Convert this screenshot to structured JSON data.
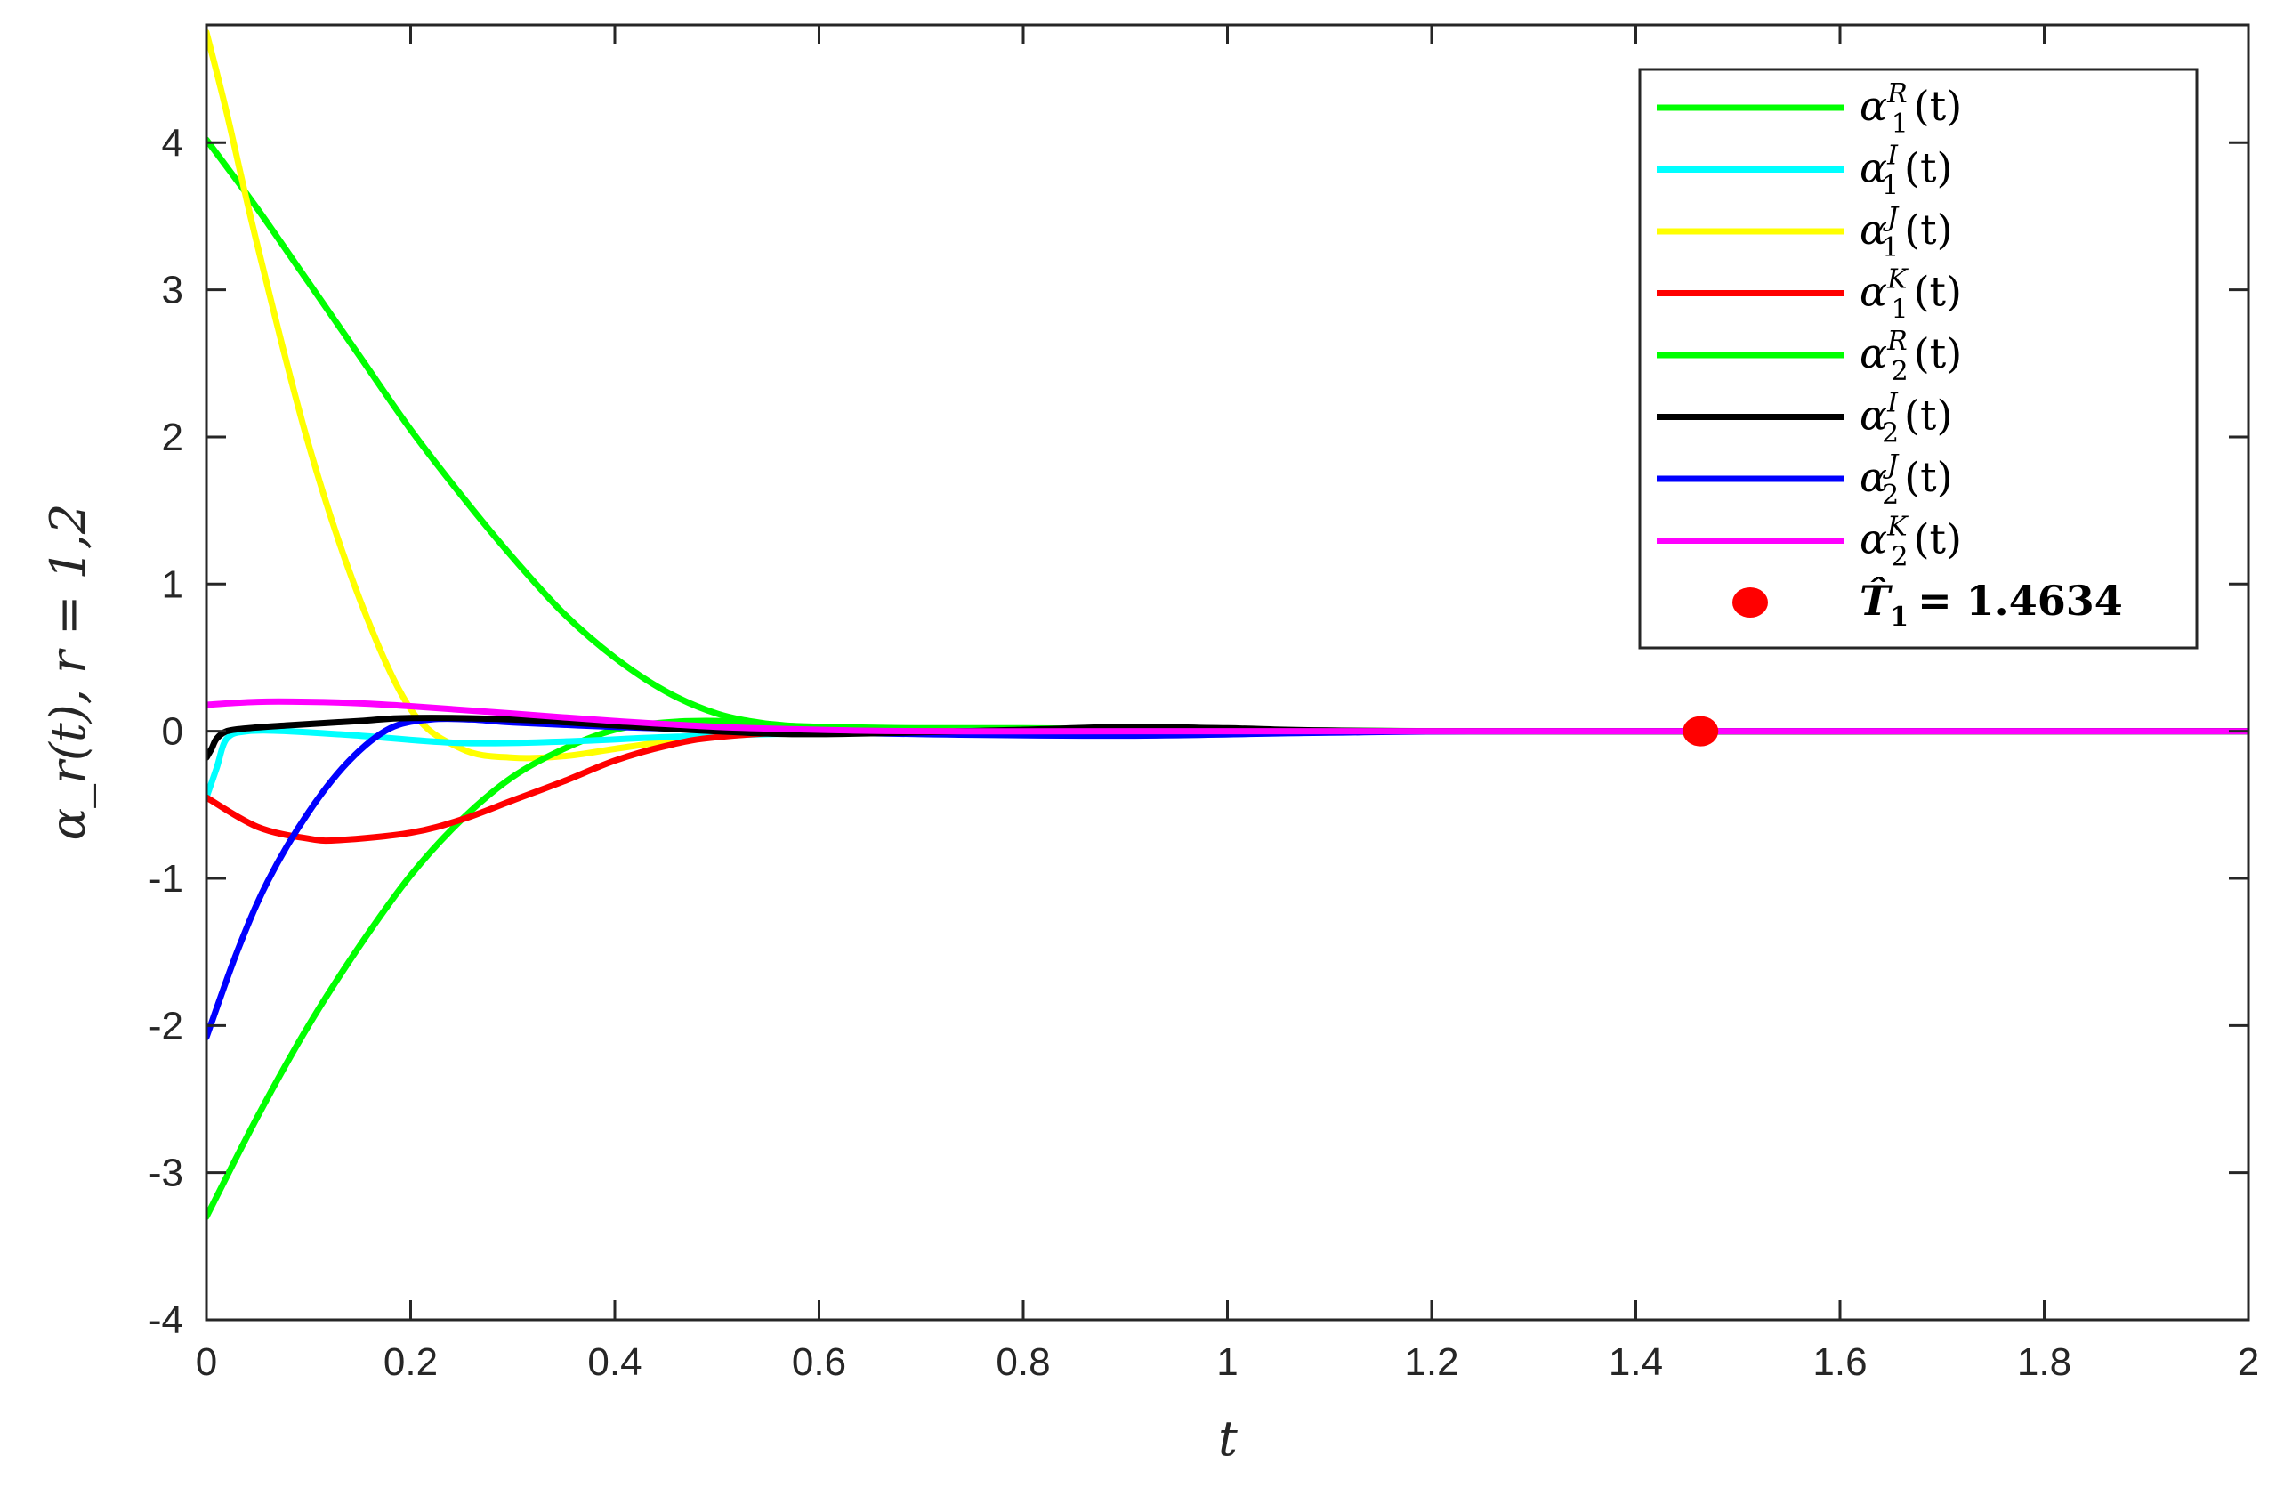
{
  "chart_data": {
    "type": "line",
    "xlabel": "t",
    "ylabel": "α_r(t), r = 1,2",
    "xlim": [
      0,
      2
    ],
    "ylim": [
      -4,
      4.8
    ],
    "x_ticks": [
      "0",
      "0.2",
      "0.4",
      "0.6",
      "0.8",
      "1",
      "1.2",
      "1.4",
      "1.6",
      "1.8",
      "2"
    ],
    "y_ticks": [
      "-4",
      "-3",
      "-2",
      "-1",
      "0",
      "1",
      "2",
      "3",
      "4"
    ],
    "grid": false,
    "legend_position": "top-right",
    "series": [
      {
        "name": "α1R(t)",
        "base": "α",
        "sub": "1",
        "sup": "R",
        "color": "#00ff00",
        "x": [
          0,
          0.05,
          0.1,
          0.15,
          0.2,
          0.25,
          0.3,
          0.35,
          0.4,
          0.45,
          0.5,
          0.55,
          0.6,
          0.7,
          0.8,
          1.0,
          1.2,
          1.4,
          2.0
        ],
        "y": [
          4.02,
          3.55,
          3.05,
          2.55,
          2.05,
          1.6,
          1.18,
          0.8,
          0.5,
          0.27,
          0.12,
          0.05,
          0.02,
          0.02,
          0.02,
          0.01,
          0.0,
          0.0,
          0.0
        ]
      },
      {
        "name": "α1I(t)",
        "base": "α",
        "sub": "1",
        "sup": "I",
        "color": "#00ffff",
        "x": [
          0,
          0.01,
          0.02,
          0.04,
          0.08,
          0.15,
          0.25,
          0.35,
          0.45,
          0.55,
          0.7,
          1.0,
          2.0
        ],
        "y": [
          -0.45,
          -0.25,
          -0.05,
          0.0,
          0.0,
          -0.03,
          -0.08,
          -0.07,
          -0.04,
          -0.02,
          0.0,
          0.0,
          0.0
        ]
      },
      {
        "name": "α1J(t)",
        "base": "α",
        "sub": "1",
        "sup": "J",
        "color": "#ffff00",
        "x": [
          0,
          0.02,
          0.05,
          0.1,
          0.15,
          0.2,
          0.25,
          0.3,
          0.35,
          0.4,
          0.45,
          0.5,
          0.6,
          0.7,
          1.0,
          2.0
        ],
        "y": [
          4.75,
          4.2,
          3.3,
          1.95,
          0.9,
          0.15,
          -0.12,
          -0.18,
          -0.17,
          -0.12,
          -0.07,
          -0.03,
          0.0,
          0.0,
          0.0,
          0.0
        ]
      },
      {
        "name": "α1K(t)",
        "base": "α",
        "sub": "1",
        "sup": "K",
        "color": "#ff0000",
        "x": [
          0,
          0.05,
          0.1,
          0.13,
          0.2,
          0.25,
          0.3,
          0.35,
          0.4,
          0.45,
          0.5,
          0.6,
          0.7,
          1.0,
          2.0
        ],
        "y": [
          -0.45,
          -0.65,
          -0.73,
          -0.74,
          -0.69,
          -0.6,
          -0.47,
          -0.34,
          -0.2,
          -0.1,
          -0.04,
          0.0,
          0.0,
          0.0,
          0.0
        ]
      },
      {
        "name": "α2R(t)",
        "base": "α",
        "sub": "2",
        "sup": "R",
        "color": "#00ff00",
        "x": [
          0,
          0.05,
          0.1,
          0.15,
          0.2,
          0.25,
          0.3,
          0.35,
          0.4,
          0.45,
          0.5,
          0.55,
          0.6,
          0.8,
          1.0,
          2.0
        ],
        "y": [
          -3.3,
          -2.62,
          -2.0,
          -1.46,
          -0.98,
          -0.6,
          -0.31,
          -0.12,
          0.01,
          0.06,
          0.07,
          0.05,
          0.03,
          0.01,
          0.0,
          0.0
        ]
      },
      {
        "name": "α2I(t)",
        "base": "α",
        "sub": "2",
        "sup": "I",
        "color": "#000000",
        "x": [
          0,
          0.005,
          0.01,
          0.02,
          0.04,
          0.08,
          0.15,
          0.2,
          0.3,
          0.4,
          0.5,
          0.6,
          0.8,
          0.9,
          1.0,
          1.2,
          2.0
        ],
        "y": [
          -0.18,
          -0.12,
          -0.05,
          0.0,
          0.02,
          0.04,
          0.07,
          0.09,
          0.08,
          0.04,
          0.0,
          -0.02,
          0.01,
          0.03,
          0.02,
          0.0,
          0.0
        ]
      },
      {
        "name": "α2J(t)",
        "base": "α",
        "sub": "2",
        "sup": "J",
        "color": "#0000ff",
        "x": [
          0,
          0.03,
          0.06,
          0.1,
          0.14,
          0.18,
          0.22,
          0.26,
          0.3,
          0.4,
          0.5,
          0.7,
          0.9,
          1.1,
          1.3,
          2.0
        ],
        "y": [
          -2.08,
          -1.5,
          -1.02,
          -0.55,
          -0.2,
          0.02,
          0.08,
          0.08,
          0.06,
          0.03,
          0.01,
          -0.02,
          -0.03,
          -0.01,
          0.0,
          0.0
        ]
      },
      {
        "name": "α2K(t)",
        "base": "α",
        "sub": "2",
        "sup": "K",
        "color": "#ff00ff",
        "x": [
          0,
          0.05,
          0.1,
          0.15,
          0.2,
          0.3,
          0.4,
          0.5,
          0.6,
          0.7,
          1.0,
          2.0
        ],
        "y": [
          0.18,
          0.2,
          0.2,
          0.19,
          0.17,
          0.12,
          0.07,
          0.03,
          0.01,
          0.0,
          0.0,
          0.0
        ]
      }
    ],
    "marker": {
      "label": "T̂1 = 1.4634",
      "label_text": "= 1.4634",
      "x": 1.4634,
      "y": 0,
      "color": "#ff0000"
    }
  }
}
